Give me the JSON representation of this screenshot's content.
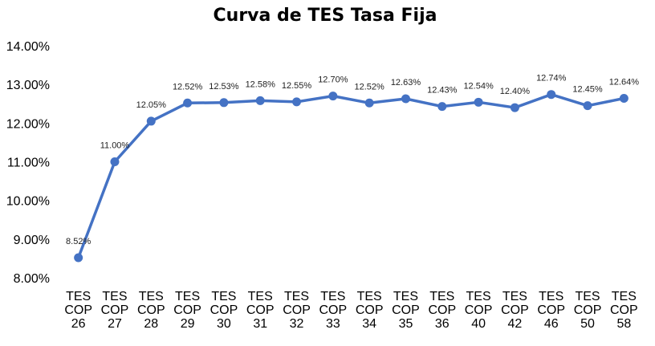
{
  "chart_data": {
    "type": "line",
    "title": "Curva de TES Tasa Fija",
    "xlabel": "",
    "ylabel": "",
    "categories": [
      [
        "TES",
        "COP",
        "26"
      ],
      [
        "TES",
        "COP",
        "27"
      ],
      [
        "TES",
        "COP",
        "28"
      ],
      [
        "TES",
        "COP",
        "29"
      ],
      [
        "TES",
        "COP",
        "30"
      ],
      [
        "TES",
        "COP",
        "31"
      ],
      [
        "TES",
        "COP",
        "32"
      ],
      [
        "TES",
        "COP",
        "33"
      ],
      [
        "TES",
        "COP",
        "34"
      ],
      [
        "TES",
        "COP",
        "35"
      ],
      [
        "TES",
        "COP",
        "36"
      ],
      [
        "TES",
        "COP",
        "40"
      ],
      [
        "TES",
        "COP",
        "42"
      ],
      [
        "TES",
        "COP",
        "46"
      ],
      [
        "TES",
        "COP",
        "50"
      ],
      [
        "TES",
        "COP",
        "58"
      ]
    ],
    "series": [
      {
        "values": [
          8.52,
          11.0,
          12.05,
          12.52,
          12.53,
          12.58,
          12.55,
          12.7,
          12.52,
          12.63,
          12.43,
          12.54,
          12.4,
          12.74,
          12.45,
          12.64
        ],
        "labels": [
          "8.52%",
          "11.00%",
          "12.05%",
          "12.52%",
          "12.53%",
          "12.58%",
          "12.55%",
          "12.70%",
          "12.52%",
          "12.63%",
          "12.43%",
          "12.54%",
          "12.40%",
          "12.74%",
          "12.45%",
          "12.64%"
        ],
        "color": "#4472C4"
      }
    ],
    "ylim": [
      8,
      14
    ],
    "yticks": [
      8,
      9,
      10,
      11,
      12,
      13,
      14
    ],
    "ytick_labels": [
      "8.00%",
      "9.00%",
      "10.00%",
      "11.00%",
      "12.00%",
      "13.00%",
      "14.00%"
    ],
    "grid": false,
    "legend": "none"
  }
}
